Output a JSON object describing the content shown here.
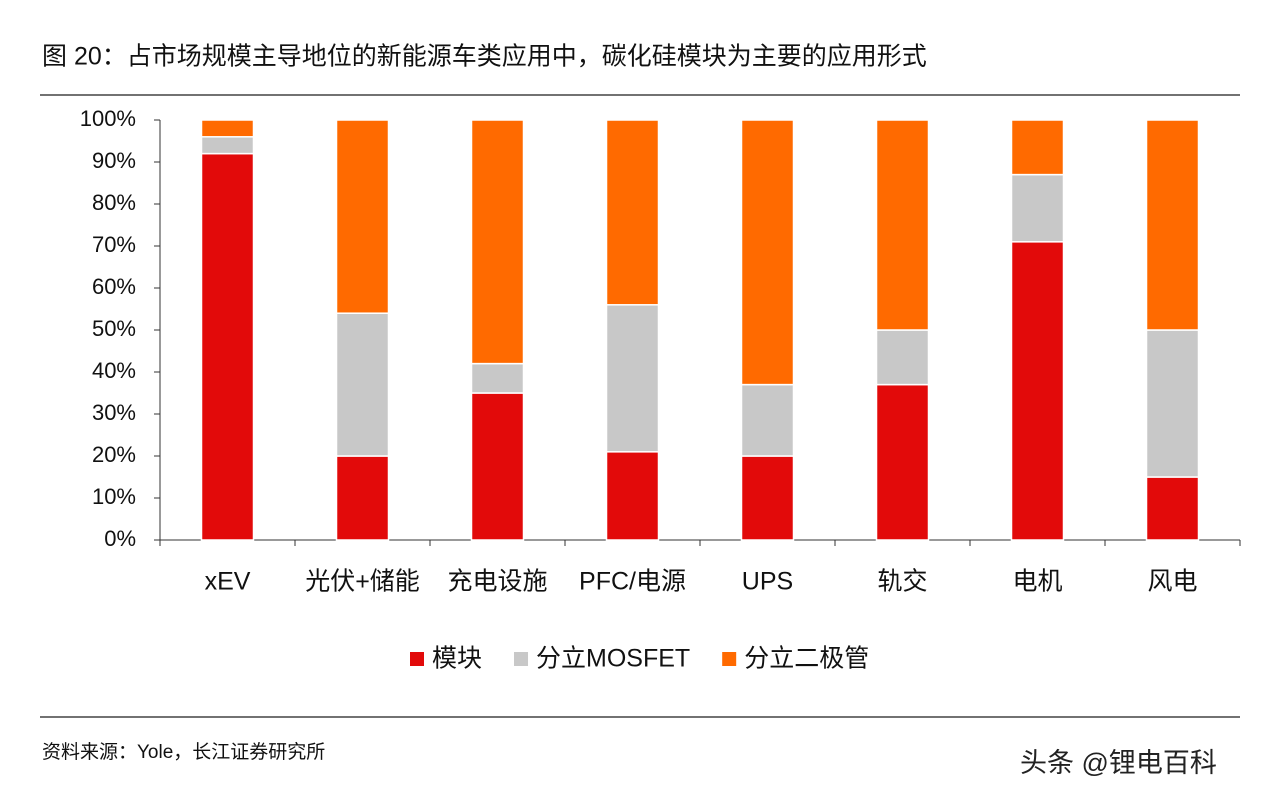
{
  "title": "图 20：占市场规模主导地位的新能源车类应用中，碳化硅模块为主要的应用形式",
  "source": "资料来源：Yole，长江证券研究所",
  "watermark": "头条 @锂电百科",
  "chart_data": {
    "type": "stacked_bar",
    "categories": [
      "xEV",
      "光伏+储能",
      "充电设施",
      "PFC/电源",
      "UPS",
      "轨交",
      "电机",
      "风电"
    ],
    "series": [
      {
        "name": "模块",
        "color": "#e20a0a",
        "values": [
          92,
          20,
          35,
          21,
          20,
          37,
          71,
          15
        ]
      },
      {
        "name": "分立MOSFET",
        "color": "#c8c8c8",
        "values": [
          4,
          34,
          7,
          35,
          17,
          13,
          16,
          35
        ]
      },
      {
        "name": "分立二极管",
        "color": "#ff6a00",
        "values": [
          4,
          46,
          58,
          44,
          63,
          50,
          13,
          50
        ]
      }
    ],
    "ylim": [
      0,
      100
    ],
    "yticks": [
      {
        "value": 0,
        "label": "0%"
      },
      {
        "value": 10,
        "label": "10%"
      },
      {
        "value": 20,
        "label": "20%"
      },
      {
        "value": 30,
        "label": "30%"
      },
      {
        "value": 40,
        "label": "40%"
      },
      {
        "value": 50,
        "label": "50%"
      },
      {
        "value": 60,
        "label": "60%"
      },
      {
        "value": 70,
        "label": "70%"
      },
      {
        "value": 80,
        "label": "80%"
      },
      {
        "value": 90,
        "label": "90%"
      },
      {
        "value": 100,
        "label": "100%"
      }
    ],
    "legend": "bottom"
  }
}
